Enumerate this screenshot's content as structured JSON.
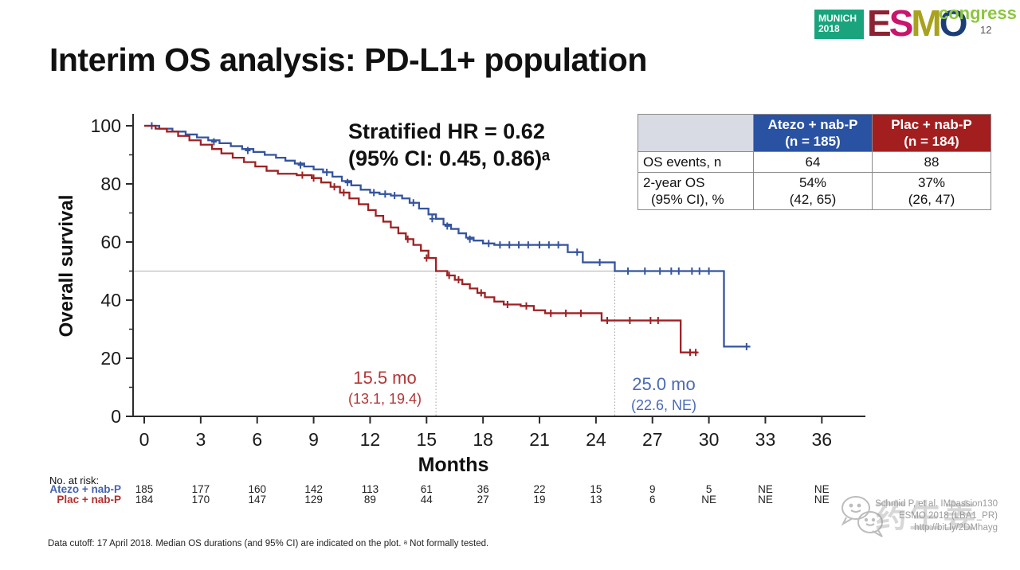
{
  "slide": {
    "title": "Interim OS analysis: PD-L1+ population",
    "page_number": "12",
    "logo": {
      "munich_line1": "MUNICH",
      "munich_line2": "2018",
      "esmo_e": "E",
      "esmo_s": "S",
      "esmo_m": "M",
      "esmo_o": "O",
      "congress": "congress"
    },
    "footnote": "Data cutoff: 17 April 2018. Median OS durations (and 95% CI) are indicated on the plot. ᵃ Not formally tested.",
    "citation_line1": "Schmid P, et al. IMpassion130",
    "citation_line2": "ESMO 2018 (LBA1_PR)",
    "citation_line3": "http://bit.ly/2DMhayg",
    "watermark_text": "药生姜"
  },
  "hr_annotation": {
    "line1": "Stratified HR = 0.62",
    "line2": "(95% CI: 0.45, 0.86)ᵃ"
  },
  "summary_table": {
    "col_atezo": {
      "label_line1": "Atezo + nab-P",
      "label_line2": "(n = 185)",
      "color": "#2a52a2"
    },
    "col_plac": {
      "label_line1": "Plac + nab-P",
      "label_line2": "(n = 184)",
      "color": "#a31e1f"
    },
    "row_events": {
      "label": "OS events, n",
      "atezo": "64",
      "plac": "88"
    },
    "row_2yros": {
      "label_line1": "2-year OS",
      "label_line2": "(95% CI), %",
      "atezo_line1": "54%",
      "atezo_line2": "(42, 65)",
      "plac_line1": "37%",
      "plac_line2": "(26, 47)"
    }
  },
  "chart_data": {
    "type": "line",
    "subtype": "kaplan-meier",
    "xlabel": "Months",
    "ylabel": "Overall survival",
    "xlim": [
      0,
      38
    ],
    "ylim": [
      0,
      100
    ],
    "x_ticks": [
      0,
      3,
      6,
      9,
      12,
      15,
      18,
      21,
      24,
      27,
      30,
      33,
      36
    ],
    "y_ticks": [
      0,
      20,
      40,
      60,
      80,
      100
    ],
    "y_minor_ticks": [
      10,
      30,
      50,
      70,
      90
    ],
    "grid": false,
    "reference_lines": {
      "horizontal_pct": 50,
      "vertical_months": [
        15.5,
        25.0
      ]
    },
    "series": [
      {
        "name": "Atezo + nab-P",
        "color": "#35549f",
        "median_months": 25.0,
        "median_label": "25.0 mo",
        "median_ci": "(22.6, NE)",
        "end_month": 32.2,
        "steps": [
          [
            0,
            100
          ],
          [
            0.8,
            99
          ],
          [
            1.5,
            98
          ],
          [
            2.2,
            97
          ],
          [
            2.8,
            96
          ],
          [
            3.4,
            95
          ],
          [
            4.0,
            94
          ],
          [
            4.6,
            93
          ],
          [
            5.2,
            92
          ],
          [
            5.8,
            91
          ],
          [
            6.4,
            90
          ],
          [
            7.0,
            89
          ],
          [
            7.5,
            88
          ],
          [
            8.0,
            87
          ],
          [
            8.5,
            86
          ],
          [
            9.0,
            85
          ],
          [
            9.5,
            84
          ],
          [
            10.0,
            82.5
          ],
          [
            10.5,
            81
          ],
          [
            11.0,
            79.5
          ],
          [
            11.5,
            78
          ],
          [
            12.0,
            77
          ],
          [
            12.5,
            76.5
          ],
          [
            13.1,
            76
          ],
          [
            13.7,
            75
          ],
          [
            14.1,
            73.5
          ],
          [
            14.6,
            71.5
          ],
          [
            15.1,
            69.5
          ],
          [
            15.5,
            68
          ],
          [
            15.9,
            66
          ],
          [
            16.3,
            64.5
          ],
          [
            16.7,
            63
          ],
          [
            17.1,
            61.5
          ],
          [
            17.5,
            60.5
          ],
          [
            18.0,
            59.5
          ],
          [
            18.6,
            59
          ],
          [
            22.5,
            56.5
          ],
          [
            23.3,
            53
          ],
          [
            25.0,
            50
          ],
          [
            30.8,
            24
          ]
        ],
        "censors": [
          [
            0.4,
            100
          ],
          [
            3.7,
            94.5
          ],
          [
            5.5,
            91.5
          ],
          [
            8.3,
            86.5
          ],
          [
            9.7,
            84
          ],
          [
            10.8,
            80.5
          ],
          [
            12.2,
            77
          ],
          [
            12.8,
            76.5
          ],
          [
            13.3,
            76
          ],
          [
            14.3,
            73.5
          ],
          [
            15.3,
            68
          ],
          [
            16.1,
            65.5
          ],
          [
            17.3,
            61
          ],
          [
            18.3,
            59.5
          ],
          [
            18.9,
            59
          ],
          [
            19.4,
            59
          ],
          [
            19.9,
            59
          ],
          [
            20.4,
            59
          ],
          [
            21.0,
            59
          ],
          [
            21.5,
            59
          ],
          [
            22.0,
            59
          ],
          [
            23.0,
            56.5
          ],
          [
            24.2,
            53
          ],
          [
            25.7,
            50
          ],
          [
            26.6,
            50
          ],
          [
            27.4,
            50
          ],
          [
            28.0,
            50
          ],
          [
            28.4,
            50
          ],
          [
            29.1,
            50
          ],
          [
            29.5,
            50
          ],
          [
            30.0,
            50
          ],
          [
            32.0,
            24
          ]
        ]
      },
      {
        "name": "Plac + nab-P",
        "color": "#9e2123",
        "median_months": 15.5,
        "median_label": "15.5 mo",
        "median_ci": "(13.1, 19.4)",
        "end_month": 29.4,
        "steps": [
          [
            0,
            100
          ],
          [
            0.6,
            99
          ],
          [
            1.2,
            98
          ],
          [
            1.8,
            96.5
          ],
          [
            2.4,
            95
          ],
          [
            3.0,
            93.5
          ],
          [
            3.6,
            92
          ],
          [
            4.1,
            90.5
          ],
          [
            4.7,
            89
          ],
          [
            5.3,
            87.5
          ],
          [
            5.9,
            86
          ],
          [
            6.5,
            84.5
          ],
          [
            7.1,
            83.5
          ],
          [
            8.1,
            83
          ],
          [
            8.9,
            82
          ],
          [
            9.4,
            80.5
          ],
          [
            9.9,
            79
          ],
          [
            10.4,
            77
          ],
          [
            10.9,
            75
          ],
          [
            11.4,
            73
          ],
          [
            11.9,
            71
          ],
          [
            12.3,
            69
          ],
          [
            12.7,
            67
          ],
          [
            13.1,
            65
          ],
          [
            13.5,
            63
          ],
          [
            13.9,
            61
          ],
          [
            14.3,
            59
          ],
          [
            14.7,
            57
          ],
          [
            15.1,
            54.5
          ],
          [
            15.5,
            50
          ],
          [
            16.1,
            48.5
          ],
          [
            16.5,
            47
          ],
          [
            16.9,
            45.5
          ],
          [
            17.3,
            44
          ],
          [
            17.7,
            42.5
          ],
          [
            18.1,
            41
          ],
          [
            18.6,
            39.5
          ],
          [
            19.1,
            38.5
          ],
          [
            20.0,
            38
          ],
          [
            20.7,
            36.5
          ],
          [
            21.3,
            35.5
          ],
          [
            24.3,
            33
          ],
          [
            28.5,
            22
          ]
        ],
        "censors": [
          [
            8.4,
            83
          ],
          [
            9.0,
            82
          ],
          [
            10.1,
            79
          ],
          [
            10.6,
            77
          ],
          [
            14.0,
            61
          ],
          [
            15.0,
            54.5
          ],
          [
            16.2,
            48.5
          ],
          [
            16.7,
            47
          ],
          [
            17.9,
            42.5
          ],
          [
            19.3,
            38.5
          ],
          [
            20.3,
            38
          ],
          [
            21.6,
            35.5
          ],
          [
            22.4,
            35.5
          ],
          [
            23.2,
            35.5
          ],
          [
            24.6,
            33
          ],
          [
            25.8,
            33
          ],
          [
            26.9,
            33
          ],
          [
            27.3,
            33
          ],
          [
            29.0,
            22
          ],
          [
            29.3,
            22
          ]
        ]
      }
    ]
  },
  "risk_table": {
    "heading": "No. at risk:",
    "rows": [
      {
        "label": "Atezo + nab-P",
        "color": "#4263ae",
        "values": [
          "185",
          "177",
          "160",
          "142",
          "113",
          "61",
          "36",
          "22",
          "15",
          "9",
          "5",
          "NE",
          "NE"
        ]
      },
      {
        "label": "Plac + nab-P",
        "color": "#b23030",
        "values": [
          "184",
          "170",
          "147",
          "129",
          "89",
          "44",
          "27",
          "19",
          "13",
          "6",
          "NE",
          "NE",
          "NE"
        ]
      }
    ]
  }
}
